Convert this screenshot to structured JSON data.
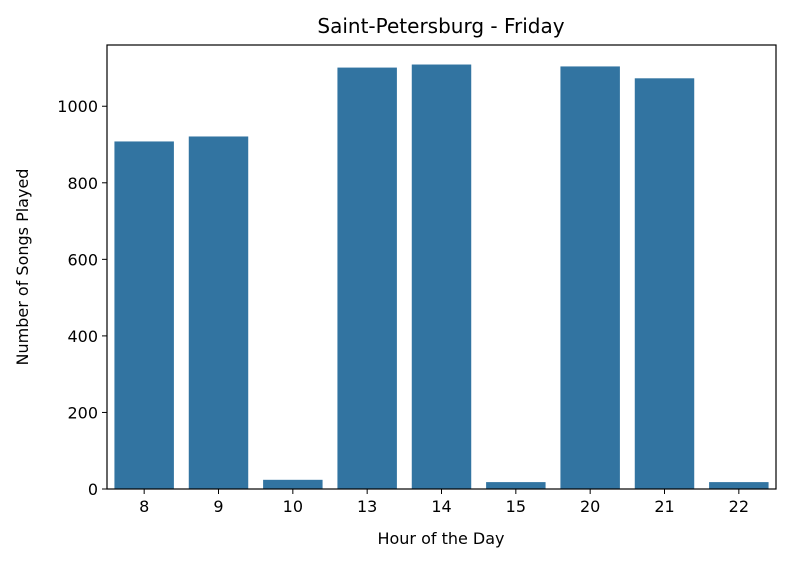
{
  "chart_data": {
    "type": "bar",
    "title": "Saint-Petersburg - Friday",
    "xlabel": "Hour of the Day",
    "ylabel": "Number of Songs Played",
    "categories": [
      "8",
      "9",
      "10",
      "13",
      "14",
      "15",
      "20",
      "21",
      "22"
    ],
    "values": [
      908,
      921,
      24,
      1101,
      1109,
      18,
      1104,
      1073,
      18
    ],
    "ylim": [
      0,
      1160
    ],
    "yticks": [
      0,
      200,
      400,
      600,
      800,
      1000
    ],
    "grid": false,
    "bar_color": "#3274a1"
  }
}
